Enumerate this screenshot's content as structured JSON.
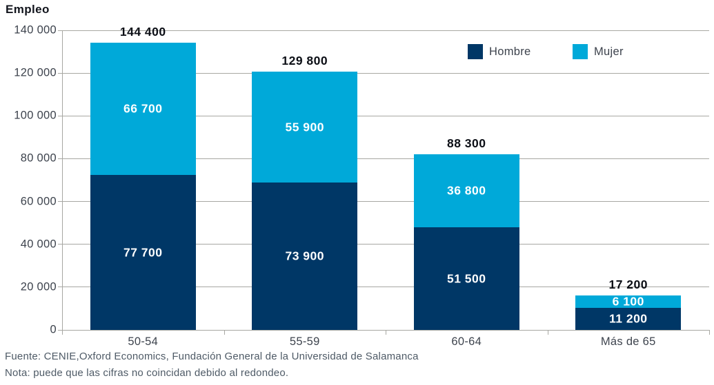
{
  "chart_data": {
    "type": "bar",
    "stacked": true,
    "title": "Empleo",
    "xlabel": "",
    "ylabel": "Empleo",
    "categories": [
      "50-54",
      "55-59",
      "60-64",
      "Más de 65"
    ],
    "series": [
      {
        "name": "Hombre",
        "color": "#003766",
        "values": [
          77700,
          73900,
          51500,
          11200
        ],
        "value_labels": [
          "77 700",
          "73 900",
          "51 500",
          "11 200"
        ]
      },
      {
        "name": "Mujer",
        "color": "#00a9d9",
        "values": [
          66700,
          55900,
          36800,
          6100
        ],
        "value_labels": [
          "66 700",
          "55 900",
          "36 800",
          "6 100"
        ]
      }
    ],
    "totals": [
      144400,
      129800,
      88300,
      17200
    ],
    "total_labels": [
      "144 400",
      "129 800",
      "88 300",
      "17 200"
    ],
    "ylim": [
      0,
      140000
    ],
    "yticks": [
      0,
      20000,
      40000,
      60000,
      80000,
      100000,
      120000,
      140000
    ],
    "ytick_labels": [
      "0",
      "20 000",
      "40 000",
      "60 000",
      "80 000",
      "100 000",
      "120 000",
      "140 000"
    ],
    "grid": true,
    "legend_position": "top-right",
    "visual_ymax": 150500
  },
  "footer": {
    "source": "Fuente: CENIE,Oxford Economics, Fundación General de la Universidad de Salamanca",
    "note": "Nota: puede que las cifras no coincidan debido al redondeo."
  },
  "colors": {
    "hombre": "#003766",
    "mujer": "#00a9d9",
    "gridline": "#a7a7a2",
    "axis_text": "#3d434d",
    "total_text": "#0c0f16",
    "footer_text": "#4e5a66"
  }
}
